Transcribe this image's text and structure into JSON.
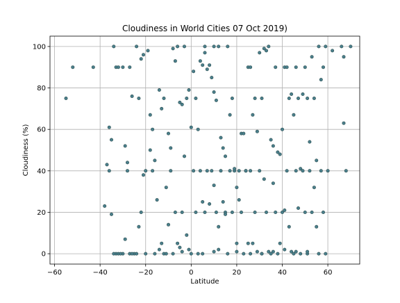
{
  "chart_data": {
    "type": "scatter",
    "title": "Cloudiness in World Cities 07 Oct 2019)",
    "xlabel": "Latitude",
    "ylabel": "Cloudiness (%)",
    "xlim": [
      -62,
      74
    ],
    "ylim": [
      -5,
      105
    ],
    "xticks": [
      -60,
      -40,
      -20,
      0,
      20,
      40,
      60
    ],
    "yticks": [
      0,
      20,
      40,
      60,
      80,
      100
    ],
    "xtick_labels": [
      "−60",
      "−40",
      "−20",
      "0",
      "20",
      "40",
      "60"
    ],
    "ytick_labels": [
      "0",
      "20",
      "40",
      "60",
      "80",
      "100"
    ],
    "grid": true,
    "marker_color": "#4a7f8c",
    "marker_edge": "#2f4f4f",
    "points": [
      [
        -55,
        75
      ],
      [
        -52,
        90
      ],
      [
        -43,
        90
      ],
      [
        -38,
        23
      ],
      [
        -37,
        43
      ],
      [
        -36,
        61
      ],
      [
        -35,
        55
      ],
      [
        -34,
        100
      ],
      [
        -33,
        90
      ],
      [
        -32,
        90
      ],
      [
        -30,
        90
      ],
      [
        -29,
        52
      ],
      [
        -28,
        44
      ],
      [
        -27,
        90
      ],
      [
        -26,
        76
      ],
      [
        -24,
        100
      ],
      [
        -23,
        75
      ],
      [
        -22,
        94
      ],
      [
        -21,
        96
      ],
      [
        -19,
        98
      ],
      [
        -18,
        67
      ],
      [
        -17,
        60
      ],
      [
        -16,
        45
      ],
      [
        -14,
        79
      ],
      [
        -13,
        70
      ],
      [
        -12,
        75
      ],
      [
        -10,
        58
      ],
      [
        -9,
        51
      ],
      [
        -8,
        99
      ],
      [
        -7,
        93
      ],
      [
        -6,
        100
      ],
      [
        -5,
        73
      ],
      [
        -4,
        72
      ],
      [
        -3,
        100
      ],
      [
        -2,
        75
      ],
      [
        -1,
        79
      ],
      [
        0,
        61
      ],
      [
        1,
        88
      ],
      [
        2,
        75
      ],
      [
        3,
        60
      ],
      [
        4,
        93
      ],
      [
        5,
        91
      ],
      [
        6,
        100
      ],
      [
        6,
        97
      ],
      [
        7,
        89
      ],
      [
        8,
        91
      ],
      [
        9,
        85
      ],
      [
        10,
        100
      ],
      [
        10,
        78
      ],
      [
        11,
        74
      ],
      [
        12,
        100
      ],
      [
        13,
        56
      ],
      [
        14,
        51
      ],
      [
        15,
        47
      ],
      [
        16,
        100
      ],
      [
        17,
        67
      ],
      [
        18,
        75
      ],
      [
        19,
        40
      ],
      [
        20,
        32
      ],
      [
        21,
        26
      ],
      [
        22,
        58
      ],
      [
        23,
        58
      ],
      [
        24,
        40
      ],
      [
        25,
        90
      ],
      [
        26,
        90
      ],
      [
        27,
        67
      ],
      [
        28,
        75
      ],
      [
        29,
        59
      ],
      [
        30,
        97
      ],
      [
        31,
        75
      ],
      [
        32,
        99
      ],
      [
        33,
        98
      ],
      [
        34,
        100
      ],
      [
        35,
        55
      ],
      [
        36,
        52
      ],
      [
        37,
        90
      ],
      [
        38,
        49
      ],
      [
        39,
        48
      ],
      [
        40,
        60
      ],
      [
        41,
        90
      ],
      [
        42,
        90
      ],
      [
        43,
        75
      ],
      [
        44,
        77
      ],
      [
        45,
        67
      ],
      [
        46,
        90
      ],
      [
        47,
        75
      ],
      [
        48,
        41
      ],
      [
        49,
        77
      ],
      [
        50,
        90
      ],
      [
        51,
        75
      ],
      [
        52,
        54
      ],
      [
        53,
        95
      ],
      [
        54,
        75
      ],
      [
        55,
        45
      ],
      [
        56,
        100
      ],
      [
        57,
        84
      ],
      [
        58,
        90
      ],
      [
        59,
        100
      ],
      [
        62,
        98
      ],
      [
        66,
        100
      ],
      [
        67,
        95
      ],
      [
        67,
        63
      ],
      [
        68,
        40
      ],
      [
        70,
        100
      ],
      [
        -36,
        40
      ],
      [
        -33,
        0
      ],
      [
        -30,
        0
      ],
      [
        -28,
        40
      ],
      [
        -27,
        0
      ],
      [
        -25,
        0
      ],
      [
        -23,
        13
      ],
      [
        -22,
        20
      ],
      [
        -21,
        38
      ],
      [
        -20,
        40
      ],
      [
        -18,
        50
      ],
      [
        -17,
        40
      ],
      [
        -15,
        26
      ],
      [
        -14,
        2
      ],
      [
        -13,
        5
      ],
      [
        -12,
        0
      ],
      [
        -11,
        32
      ],
      [
        -10,
        14
      ],
      [
        -9,
        40
      ],
      [
        -8,
        0
      ],
      [
        -7,
        20
      ],
      [
        -6,
        5
      ],
      [
        -5,
        3
      ],
      [
        -4,
        1
      ],
      [
        -3,
        47
      ],
      [
        -2,
        9
      ],
      [
        -1,
        2
      ],
      [
        0,
        0
      ],
      [
        1,
        40
      ],
      [
        2,
        20
      ],
      [
        3,
        0
      ],
      [
        4,
        40
      ],
      [
        5,
        25
      ],
      [
        6,
        20
      ],
      [
        7,
        40
      ],
      [
        8,
        24
      ],
      [
        9,
        40
      ],
      [
        10,
        1
      ],
      [
        10,
        33
      ],
      [
        11,
        20
      ],
      [
        12,
        2
      ],
      [
        12,
        13
      ],
      [
        13,
        40
      ],
      [
        14,
        25
      ],
      [
        15,
        20
      ],
      [
        16,
        0
      ],
      [
        17,
        40
      ],
      [
        18,
        20
      ],
      [
        19,
        41
      ],
      [
        20,
        1
      ],
      [
        21,
        40
      ],
      [
        22,
        20
      ],
      [
        23,
        0
      ],
      [
        24,
        40
      ],
      [
        25,
        5
      ],
      [
        26,
        0
      ],
      [
        27,
        5
      ],
      [
        28,
        20
      ],
      [
        29,
        1
      ],
      [
        30,
        40
      ],
      [
        31,
        0
      ],
      [
        32,
        36
      ],
      [
        33,
        20
      ],
      [
        34,
        1
      ],
      [
        35,
        0
      ],
      [
        36,
        34
      ],
      [
        37,
        20
      ],
      [
        38,
        0
      ],
      [
        39,
        5
      ],
      [
        40,
        20
      ],
      [
        41,
        2
      ],
      [
        42,
        40
      ],
      [
        43,
        13
      ],
      [
        44,
        1
      ],
      [
        45,
        0
      ],
      [
        46,
        40
      ],
      [
        47,
        22
      ],
      [
        48,
        0
      ],
      [
        49,
        40
      ],
      [
        50,
        20
      ],
      [
        51,
        0
      ],
      [
        52,
        40
      ],
      [
        53,
        20
      ],
      [
        54,
        32
      ],
      [
        55,
        13
      ],
      [
        56,
        0
      ],
      [
        57,
        40
      ],
      [
        58,
        20
      ],
      [
        59,
        0
      ],
      [
        60,
        40
      ],
      [
        -35,
        19
      ],
      [
        -34,
        0
      ],
      [
        -32,
        0
      ],
      [
        -31,
        0
      ],
      [
        -29,
        7
      ],
      [
        -26,
        0
      ],
      [
        -24,
        0
      ],
      [
        -20,
        0
      ],
      [
        -16,
        0
      ],
      [
        -11,
        0
      ],
      [
        -4,
        20
      ],
      [
        5,
        0
      ],
      [
        15,
        19
      ],
      [
        20,
        5
      ],
      [
        26,
        40
      ],
      [
        31,
        0
      ],
      [
        36,
        1
      ],
      [
        41,
        21
      ],
      [
        46,
        1
      ],
      [
        51,
        1
      ]
    ]
  }
}
